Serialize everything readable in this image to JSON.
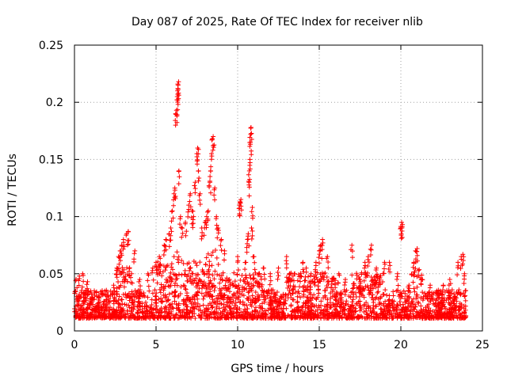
{
  "chart_data": {
    "type": "scatter",
    "title": "Day 087 of 2025, Rate Of TEC Index for receiver nlib",
    "xlabel": "GPS time / hours",
    "ylabel": "ROTI / TECUs",
    "xlim": [
      0,
      25
    ],
    "ylim": [
      0,
      0.25
    ],
    "x_ticks": [
      0,
      5,
      10,
      15,
      20,
      25
    ],
    "y_ticks": [
      0,
      0.05,
      0.1,
      0.15,
      0.2,
      0.25
    ],
    "x_tick_labels": [
      "0",
      "5",
      "10",
      "15",
      "20",
      "25"
    ],
    "y_tick_labels": [
      "0",
      "0.05",
      "0.1",
      "0.15",
      "0.2",
      "0.25"
    ],
    "grid": true,
    "marker": "+",
    "marker_color": "#ff0000",
    "series": [
      {
        "name": "ROTI",
        "points": [
          [
            0.1,
            0.045
          ],
          [
            0.3,
            0.048
          ],
          [
            0.5,
            0.05
          ],
          [
            0.8,
            0.043
          ],
          [
            1.0,
            0.035
          ],
          [
            1.5,
            0.03
          ],
          [
            2.0,
            0.03
          ],
          [
            2.4,
            0.04
          ],
          [
            2.6,
            0.055
          ],
          [
            2.7,
            0.065
          ],
          [
            2.8,
            0.07
          ],
          [
            2.9,
            0.075
          ],
          [
            3.0,
            0.08
          ],
          [
            3.2,
            0.085
          ],
          [
            3.3,
            0.087
          ],
          [
            3.5,
            0.05
          ],
          [
            3.7,
            0.07
          ],
          [
            4.0,
            0.045
          ],
          [
            4.5,
            0.05
          ],
          [
            4.8,
            0.055
          ],
          [
            5.0,
            0.06
          ],
          [
            5.2,
            0.065
          ],
          [
            5.5,
            0.075
          ],
          [
            5.6,
            0.08
          ],
          [
            5.8,
            0.085
          ],
          [
            5.9,
            0.09
          ],
          [
            6.0,
            0.105
          ],
          [
            6.1,
            0.12
          ],
          [
            6.15,
            0.125
          ],
          [
            6.2,
            0.19
          ],
          [
            6.25,
            0.193
          ],
          [
            6.3,
            0.205
          ],
          [
            6.32,
            0.21
          ],
          [
            6.35,
            0.215
          ],
          [
            6.38,
            0.218
          ],
          [
            6.4,
            0.14
          ],
          [
            6.5,
            0.1
          ],
          [
            6.6,
            0.09
          ],
          [
            6.8,
            0.095
          ],
          [
            7.0,
            0.11
          ],
          [
            7.1,
            0.12
          ],
          [
            7.2,
            0.105
          ],
          [
            7.3,
            0.1
          ],
          [
            7.4,
            0.13
          ],
          [
            7.5,
            0.155
          ],
          [
            7.55,
            0.16
          ],
          [
            7.6,
            0.14
          ],
          [
            7.7,
            0.12
          ],
          [
            7.8,
            0.09
          ],
          [
            8.0,
            0.095
          ],
          [
            8.1,
            0.1
          ],
          [
            8.2,
            0.105
          ],
          [
            8.3,
            0.13
          ],
          [
            8.35,
            0.14
          ],
          [
            8.4,
            0.155
          ],
          [
            8.45,
            0.168
          ],
          [
            8.5,
            0.17
          ],
          [
            8.6,
            0.125
          ],
          [
            8.7,
            0.1
          ],
          [
            8.8,
            0.09
          ],
          [
            9.0,
            0.08
          ],
          [
            9.2,
            0.07
          ],
          [
            9.5,
            0.045
          ],
          [
            10.0,
            0.065
          ],
          [
            10.1,
            0.11
          ],
          [
            10.15,
            0.113
          ],
          [
            10.2,
            0.115
          ],
          [
            10.5,
            0.06
          ],
          [
            10.6,
            0.08
          ],
          [
            10.65,
            0.085
          ],
          [
            10.7,
            0.13
          ],
          [
            10.72,
            0.14
          ],
          [
            10.75,
            0.15
          ],
          [
            10.78,
            0.165
          ],
          [
            10.8,
            0.172
          ],
          [
            10.82,
            0.178
          ],
          [
            10.85,
            0.09
          ],
          [
            10.9,
            0.108
          ],
          [
            11.0,
            0.065
          ],
          [
            11.3,
            0.05
          ],
          [
            11.6,
            0.055
          ],
          [
            12.0,
            0.05
          ],
          [
            12.5,
            0.055
          ],
          [
            13.0,
            0.065
          ],
          [
            13.2,
            0.05
          ],
          [
            13.5,
            0.05
          ],
          [
            14.0,
            0.06
          ],
          [
            14.2,
            0.055
          ],
          [
            14.5,
            0.05
          ],
          [
            14.8,
            0.06
          ],
          [
            15.0,
            0.07
          ],
          [
            15.1,
            0.075
          ],
          [
            15.2,
            0.08
          ],
          [
            15.5,
            0.065
          ],
          [
            15.8,
            0.045
          ],
          [
            16.2,
            0.05
          ],
          [
            16.6,
            0.045
          ],
          [
            17.0,
            0.075
          ],
          [
            17.5,
            0.045
          ],
          [
            17.8,
            0.06
          ],
          [
            18.0,
            0.065
          ],
          [
            18.2,
            0.075
          ],
          [
            18.5,
            0.055
          ],
          [
            19.0,
            0.06
          ],
          [
            19.3,
            0.06
          ],
          [
            19.8,
            0.05
          ],
          [
            20.0,
            0.09
          ],
          [
            20.05,
            0.095
          ],
          [
            20.1,
            0.093
          ],
          [
            20.5,
            0.04
          ],
          [
            20.8,
            0.06
          ],
          [
            20.9,
            0.07
          ],
          [
            21.0,
            0.072
          ],
          [
            21.3,
            0.045
          ],
          [
            21.8,
            0.04
          ],
          [
            22.2,
            0.035
          ],
          [
            22.6,
            0.04
          ],
          [
            23.0,
            0.045
          ],
          [
            23.5,
            0.06
          ],
          [
            23.7,
            0.065
          ],
          [
            23.8,
            0.067
          ],
          [
            23.9,
            0.05
          ]
        ]
      }
    ],
    "dense_band": {
      "x_range": [
        0,
        24
      ],
      "y_min": 0.005,
      "y_max": 0.04
    }
  }
}
